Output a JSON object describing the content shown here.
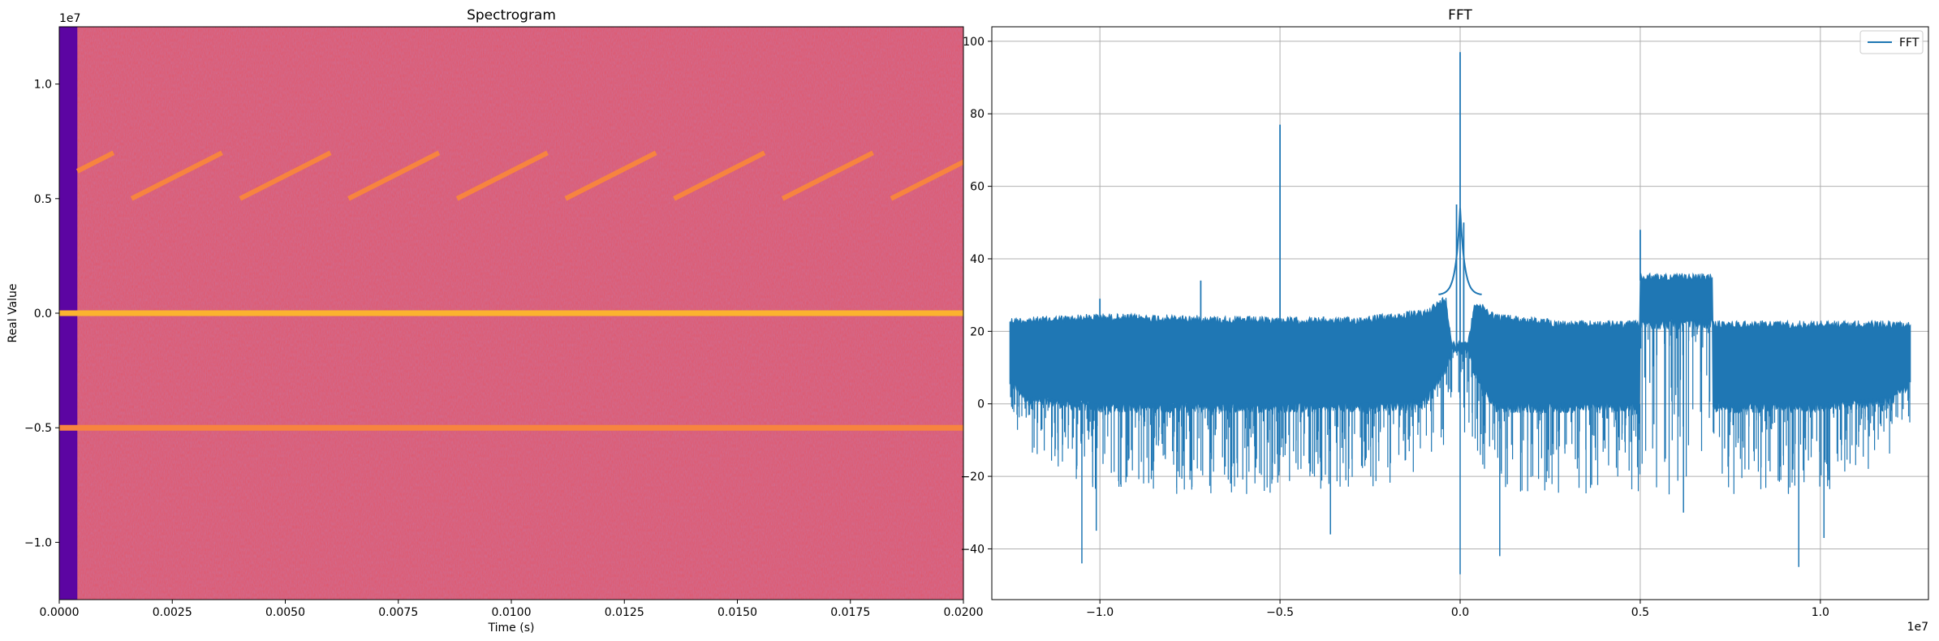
{
  "chart_data": [
    {
      "type": "heatmap",
      "title": "Spectrogram",
      "xlabel": "Time (s)",
      "ylabel": "Real Value",
      "xlim": [
        0.0,
        0.02
      ],
      "ylim": [
        -12500000,
        12500000
      ],
      "y_offset_text": "1e7",
      "colormap": "plasma",
      "grid": false,
      "x_ticks": [
        {
          "value": 0.0,
          "label": "0.0000"
        },
        {
          "value": 0.0025,
          "label": "0.0025"
        },
        {
          "value": 0.005,
          "label": "0.0050"
        },
        {
          "value": 0.0075,
          "label": "0.0075"
        },
        {
          "value": 0.01,
          "label": "0.0100"
        },
        {
          "value": 0.0125,
          "label": "0.0125"
        },
        {
          "value": 0.015,
          "label": "0.0150"
        },
        {
          "value": 0.0175,
          "label": "0.0175"
        },
        {
          "value": 0.02,
          "label": "0.0200"
        }
      ],
      "y_ticks": [
        {
          "value": 10000000,
          "label": "1.0"
        },
        {
          "value": 5000000,
          "label": "0.5"
        },
        {
          "value": 0,
          "label": "0.0"
        },
        {
          "value": -5000000,
          "label": "−0.5"
        },
        {
          "value": -10000000,
          "label": "−1.0"
        }
      ],
      "low_energy_until": 0.0004,
      "bands": [
        {
          "name": "dc",
          "y": 0,
          "color": "#fbb32f"
        },
        {
          "name": "tone",
          "y": -5000000,
          "color": "#f7843f"
        }
      ],
      "sweeps": [
        {
          "t0": 0.0004,
          "t1": 0.0012,
          "f0": 6200000,
          "f1": 7000000
        },
        {
          "t0": 0.0016,
          "t1": 0.0036,
          "f0": 5000000,
          "f1": 7000000
        },
        {
          "t0": 0.004,
          "t1": 0.006,
          "f0": 5000000,
          "f1": 7000000
        },
        {
          "t0": 0.0064,
          "t1": 0.0084,
          "f0": 5000000,
          "f1": 7000000
        },
        {
          "t0": 0.0088,
          "t1": 0.0108,
          "f0": 5000000,
          "f1": 7000000
        },
        {
          "t0": 0.0112,
          "t1": 0.0132,
          "f0": 5000000,
          "f1": 7000000
        },
        {
          "t0": 0.0136,
          "t1": 0.0156,
          "f0": 5000000,
          "f1": 7000000
        },
        {
          "t0": 0.016,
          "t1": 0.018,
          "f0": 5000000,
          "f1": 7000000
        },
        {
          "t0": 0.0184,
          "t1": 0.0204,
          "f0": 5000000,
          "f1": 7000000
        }
      ],
      "colors": {
        "background": "#e0566a",
        "low": "#5c05a2",
        "sweep": "#f7843f"
      }
    },
    {
      "type": "line",
      "title": "FFT",
      "xlabel": "",
      "ylabel": "",
      "xlim": [
        -13000000,
        13000000
      ],
      "ylim": [
        -54,
        104
      ],
      "x_offset_text": "1e7",
      "grid": true,
      "legend": "top-right",
      "x_ticks": [
        {
          "value": -10000000,
          "label": "−1.0"
        },
        {
          "value": -5000000,
          "label": "−0.5"
        },
        {
          "value": 0,
          "label": "0.0"
        },
        {
          "value": 5000000,
          "label": "0.5"
        },
        {
          "value": 10000000,
          "label": "1.0"
        }
      ],
      "y_ticks": [
        {
          "value": -40,
          "label": "−40"
        },
        {
          "value": -20,
          "label": "−20"
        },
        {
          "value": 0,
          "label": "0"
        },
        {
          "value": 20,
          "label": "20"
        },
        {
          "value": 40,
          "label": "40"
        },
        {
          "value": 60,
          "label": "60"
        },
        {
          "value": 80,
          "label": "80"
        },
        {
          "value": 100,
          "label": "100"
        }
      ],
      "series": [
        {
          "name": "FFT",
          "color": "#1f77b4",
          "x_range": [
            -12500000,
            12500000
          ],
          "noise_top": 24,
          "noise_bottom": 0,
          "envelope": [
            [
              -12500000,
              24,
              6,
              -6
            ],
            [
              -12000000,
              24,
              1,
              -15
            ],
            [
              -10000000,
              25,
              -1,
              -25
            ],
            [
              -5000000,
              24,
              -1,
              -25
            ],
            [
              -3000000,
              24,
              -1,
              -25
            ],
            [
              -1000000,
              26,
              0,
              -20
            ],
            [
              -400000,
              30,
              10,
              -12
            ],
            [
              -200000,
              16,
              16,
              -8
            ],
            [
              200000,
              16,
              16,
              -8
            ],
            [
              400000,
              29,
              8,
              -12
            ],
            [
              1000000,
              25,
              -1,
              -25
            ],
            [
              3000000,
              23,
              -1,
              -25
            ],
            [
              4990000,
              23,
              -1,
              -25
            ],
            [
              5000000,
              36,
              22,
              -25
            ],
            [
              7000000,
              36,
              22,
              -25
            ],
            [
              7010000,
              23,
              -1,
              -25
            ],
            [
              10000000,
              23,
              -1,
              -25
            ],
            [
              12000000,
              23,
              1,
              -15
            ],
            [
              12500000,
              23,
              6,
              -6
            ]
          ],
          "peaks": [
            {
              "x": 0,
              "y": 97
            },
            {
              "x": -100000,
              "y": 55
            },
            {
              "x": 100000,
              "y": 50
            },
            {
              "x": -5000000,
              "y": 77
            },
            {
              "x": 5000000,
              "y": 48
            },
            {
              "x": -7200000,
              "y": 34
            },
            {
              "x": -10000000,
              "y": 29
            }
          ],
          "dips": [
            {
              "x": -10500000,
              "y": -44
            },
            {
              "x": 0,
              "y": -47
            },
            {
              "x": 1100000,
              "y": -42
            },
            {
              "x": 9400000,
              "y": -45
            },
            {
              "x": 10100000,
              "y": -37
            },
            {
              "x": -10100000,
              "y": -35
            },
            {
              "x": -3600000,
              "y": -36
            },
            {
              "x": 6200000,
              "y": -30
            }
          ]
        }
      ]
    }
  ]
}
